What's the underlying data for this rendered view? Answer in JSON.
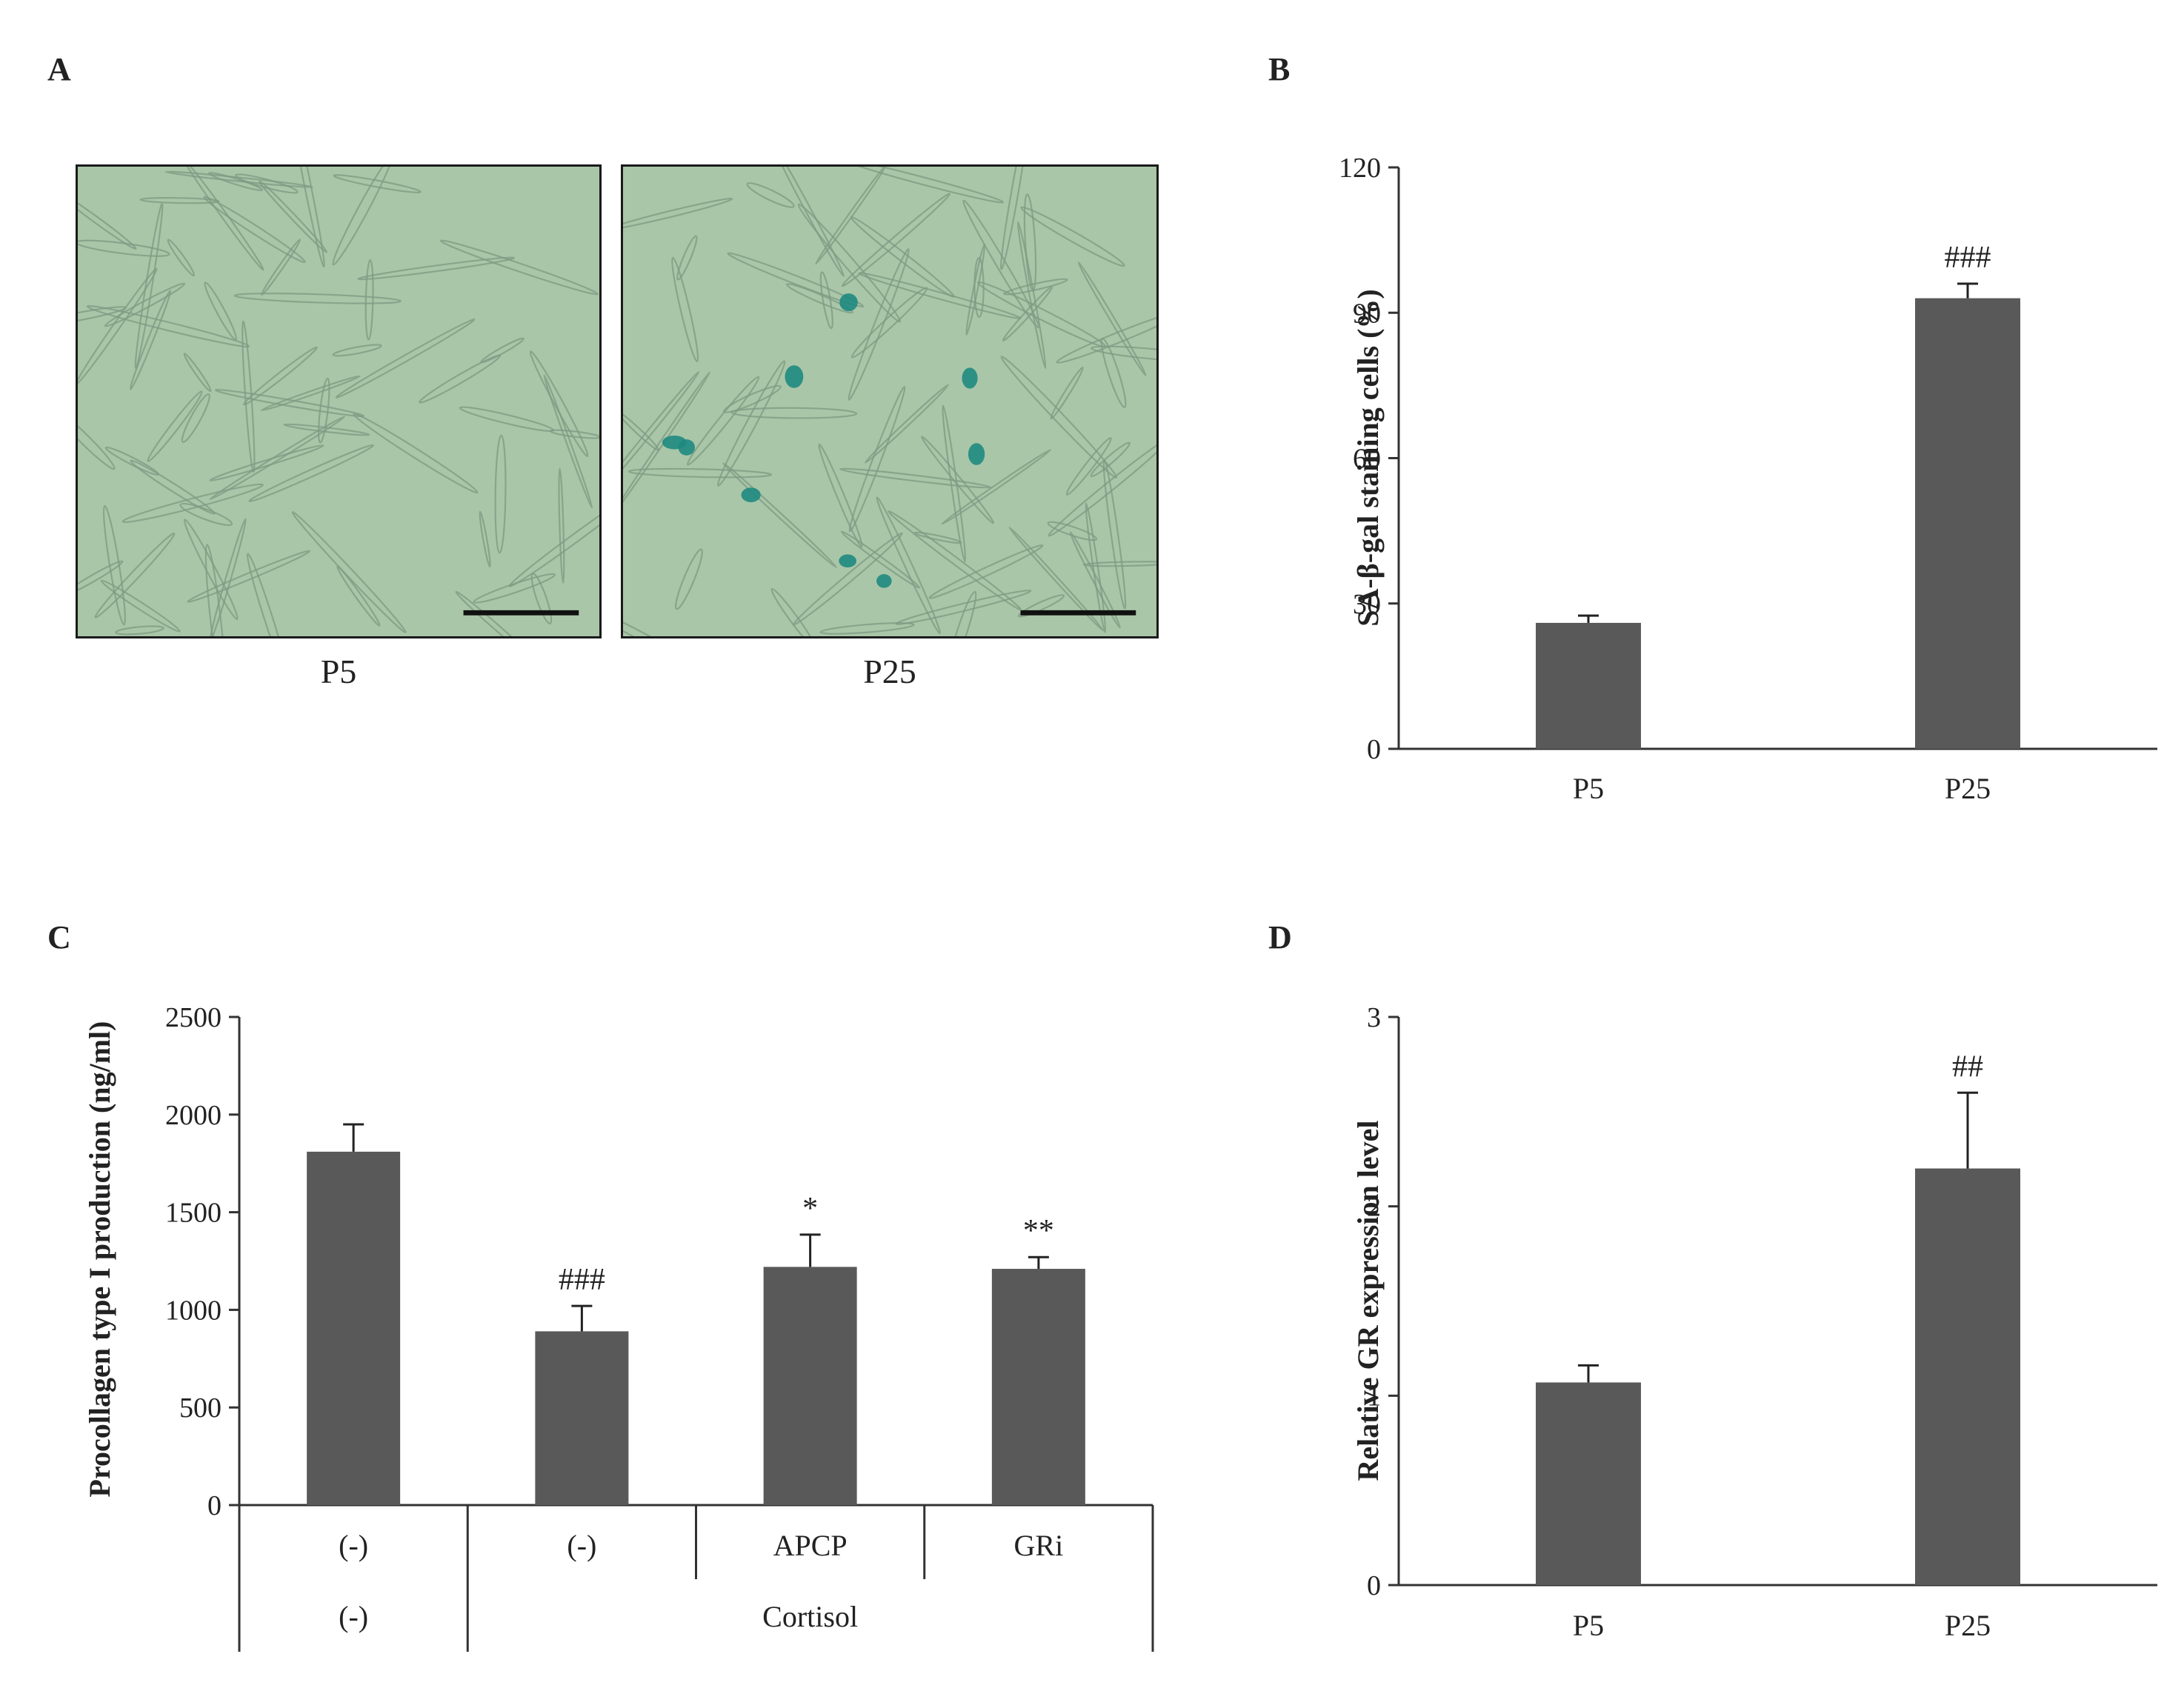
{
  "panels": {
    "a": {
      "letter": "A",
      "images": [
        {
          "label": "P5",
          "senescent_count": 0
        },
        {
          "label": "P25",
          "senescent_count": 9
        }
      ]
    },
    "b": {
      "letter": "B"
    },
    "c": {
      "letter": "C"
    },
    "d": {
      "letter": "D"
    }
  },
  "colors": {
    "bar": "#595959",
    "axis": "#333333",
    "culture": "#a9c6a8",
    "cell": "#7e9a83",
    "stain": "#1f8a80"
  },
  "chart_data": [
    {
      "id": "B",
      "type": "bar",
      "categories": [
        "P5",
        "P25"
      ],
      "values": [
        26,
        93
      ],
      "errors": [
        1.5,
        3
      ],
      "annotations": [
        "",
        "###"
      ],
      "ylabel": "SA-β-gal staining cells (%)",
      "ylim": [
        0,
        120
      ],
      "yticks": [
        0,
        30,
        60,
        90,
        120
      ],
      "grid": false
    },
    {
      "id": "C",
      "type": "bar",
      "categories": [
        "(-)",
        "(-)",
        "APCP",
        "GRi"
      ],
      "groups": [
        "(-)",
        "Cortisol"
      ],
      "group_spans": [
        [
          0,
          0
        ],
        [
          1,
          3
        ]
      ],
      "values": [
        1810,
        890,
        1220,
        1210
      ],
      "errors": [
        140,
        130,
        165,
        60
      ],
      "annotations": [
        "",
        "###",
        "*",
        "**"
      ],
      "ylabel": "Procollagen type I  production (ng/ml)",
      "ylim": [
        0,
        2500
      ],
      "yticks": [
        0,
        500,
        1000,
        1500,
        2000,
        2500
      ],
      "grid": false
    },
    {
      "id": "D",
      "type": "bar",
      "categories": [
        "P5",
        "P25"
      ],
      "values": [
        1.07,
        2.2
      ],
      "errors": [
        0.09,
        0.4
      ],
      "annotations": [
        "",
        "##"
      ],
      "ylabel": "Relative  GR expression level",
      "ylim": [
        0,
        3
      ],
      "yticks": [
        0,
        1,
        2,
        3
      ],
      "grid": false
    }
  ]
}
